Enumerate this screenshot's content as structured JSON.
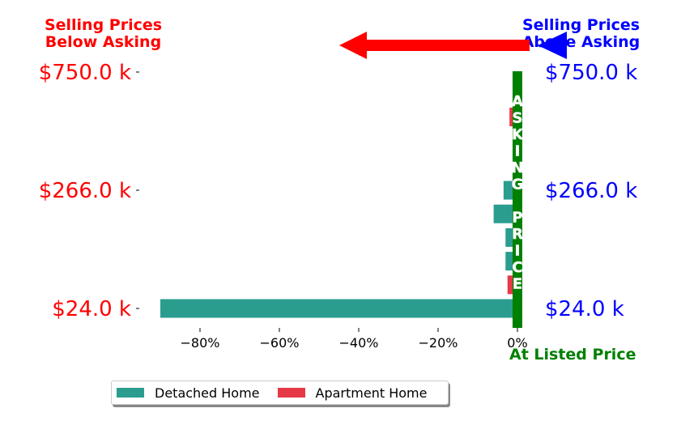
{
  "colors": {
    "detached": "#2a9d8f",
    "apartment": "#e63946",
    "asking_line": "#008000",
    "left_axis_text": "#ff0000",
    "right_axis_text": "#0000ff",
    "left_arrow": "#ff0000",
    "right_arrow": "#0000ff"
  },
  "header": {
    "left_line1": "Selling Prices",
    "left_line2": "Below Asking",
    "right_line1": "Selling Prices",
    "right_line2": "Above Asking"
  },
  "listed_label": "At Listed Price",
  "asking_vertical_text": [
    "A",
    "S",
    "K",
    "I",
    "N",
    "G",
    "",
    "P",
    "R",
    "I",
    "C",
    "E"
  ],
  "legend": [
    {
      "label": "Detached Home",
      "color_key": "detached"
    },
    {
      "label": "Apartment Home",
      "color_key": "apartment"
    }
  ],
  "chart_data": {
    "type": "bar",
    "orientation": "horizontal",
    "xlabel": "",
    "ylabel": "",
    "xlim": [
      -92,
      0
    ],
    "xticks": [
      -80,
      -60,
      -40,
      -20,
      0
    ],
    "xtick_labels": [
      "−80%",
      "−60%",
      "−40%",
      "−20%",
      "0%"
    ],
    "y_tick_labels_left": [
      "$750.0 k",
      "$266.0 k",
      "$24.0 k"
    ],
    "y_tick_labels_right": [
      "$750.0 k",
      "$266.0 k",
      "$24.0 k"
    ],
    "y_tick_rows": [
      0,
      5,
      10
    ],
    "rows": [
      {
        "row": 1.9,
        "series": "Apartment Home",
        "value": -2.0
      },
      {
        "row": 5.0,
        "series": "Detached Home",
        "value": -3.5
      },
      {
        "row": 6.0,
        "series": "Detached Home",
        "value": -6.0
      },
      {
        "row": 7.0,
        "series": "Detached Home",
        "value": -3.0
      },
      {
        "row": 8.0,
        "series": "Detached Home",
        "value": -3.0
      },
      {
        "row": 9.0,
        "series": "Apartment Home",
        "value": -2.5
      },
      {
        "row": 10.0,
        "series": "Detached Home",
        "value": -90.0
      }
    ]
  }
}
